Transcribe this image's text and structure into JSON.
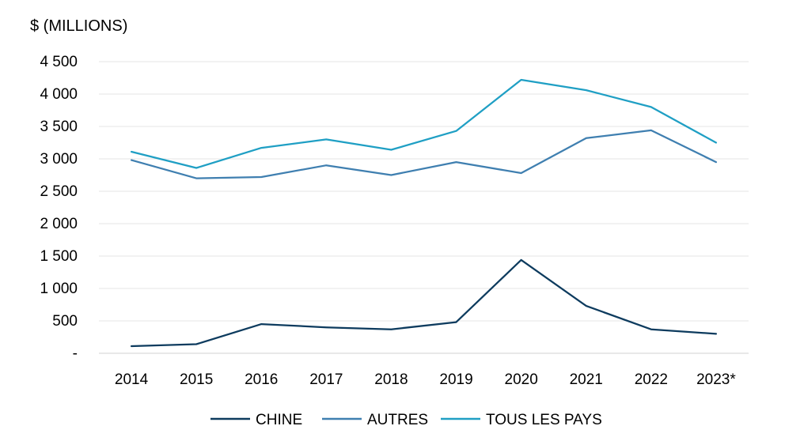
{
  "chart_data": {
    "type": "line",
    "title": "",
    "ylabel": "$ (MILLIONS)",
    "xlabel": "",
    "categories": [
      "2014",
      "2015",
      "2016",
      "2017",
      "2018",
      "2019",
      "2020",
      "2021",
      "2022",
      "2023*"
    ],
    "yticks": [
      0,
      500,
      1000,
      1500,
      2000,
      2500,
      3000,
      3500,
      4000,
      4500
    ],
    "ytick_labels": [
      "-",
      "500",
      "1 000",
      "1 500",
      "2 000",
      "2 500",
      "3 000",
      "3 500",
      "4 000",
      "4 500"
    ],
    "ylim": [
      0,
      4500
    ],
    "grid": true,
    "legend_position": "bottom",
    "series": [
      {
        "name": "CHINE",
        "color": "#0d3b5e",
        "values": [
          110,
          140,
          450,
          400,
          370,
          480,
          1440,
          730,
          370,
          300
        ]
      },
      {
        "name": "AUTRES",
        "color": "#3f7fb0",
        "values": [
          2980,
          2700,
          2720,
          2900,
          2750,
          2950,
          2780,
          3320,
          3440,
          2950
        ]
      },
      {
        "name": "TOUS LES PAYS",
        "color": "#1f9fc4",
        "values": [
          3110,
          2860,
          3170,
          3300,
          3140,
          3430,
          4220,
          4060,
          3800,
          3250
        ]
      }
    ]
  }
}
